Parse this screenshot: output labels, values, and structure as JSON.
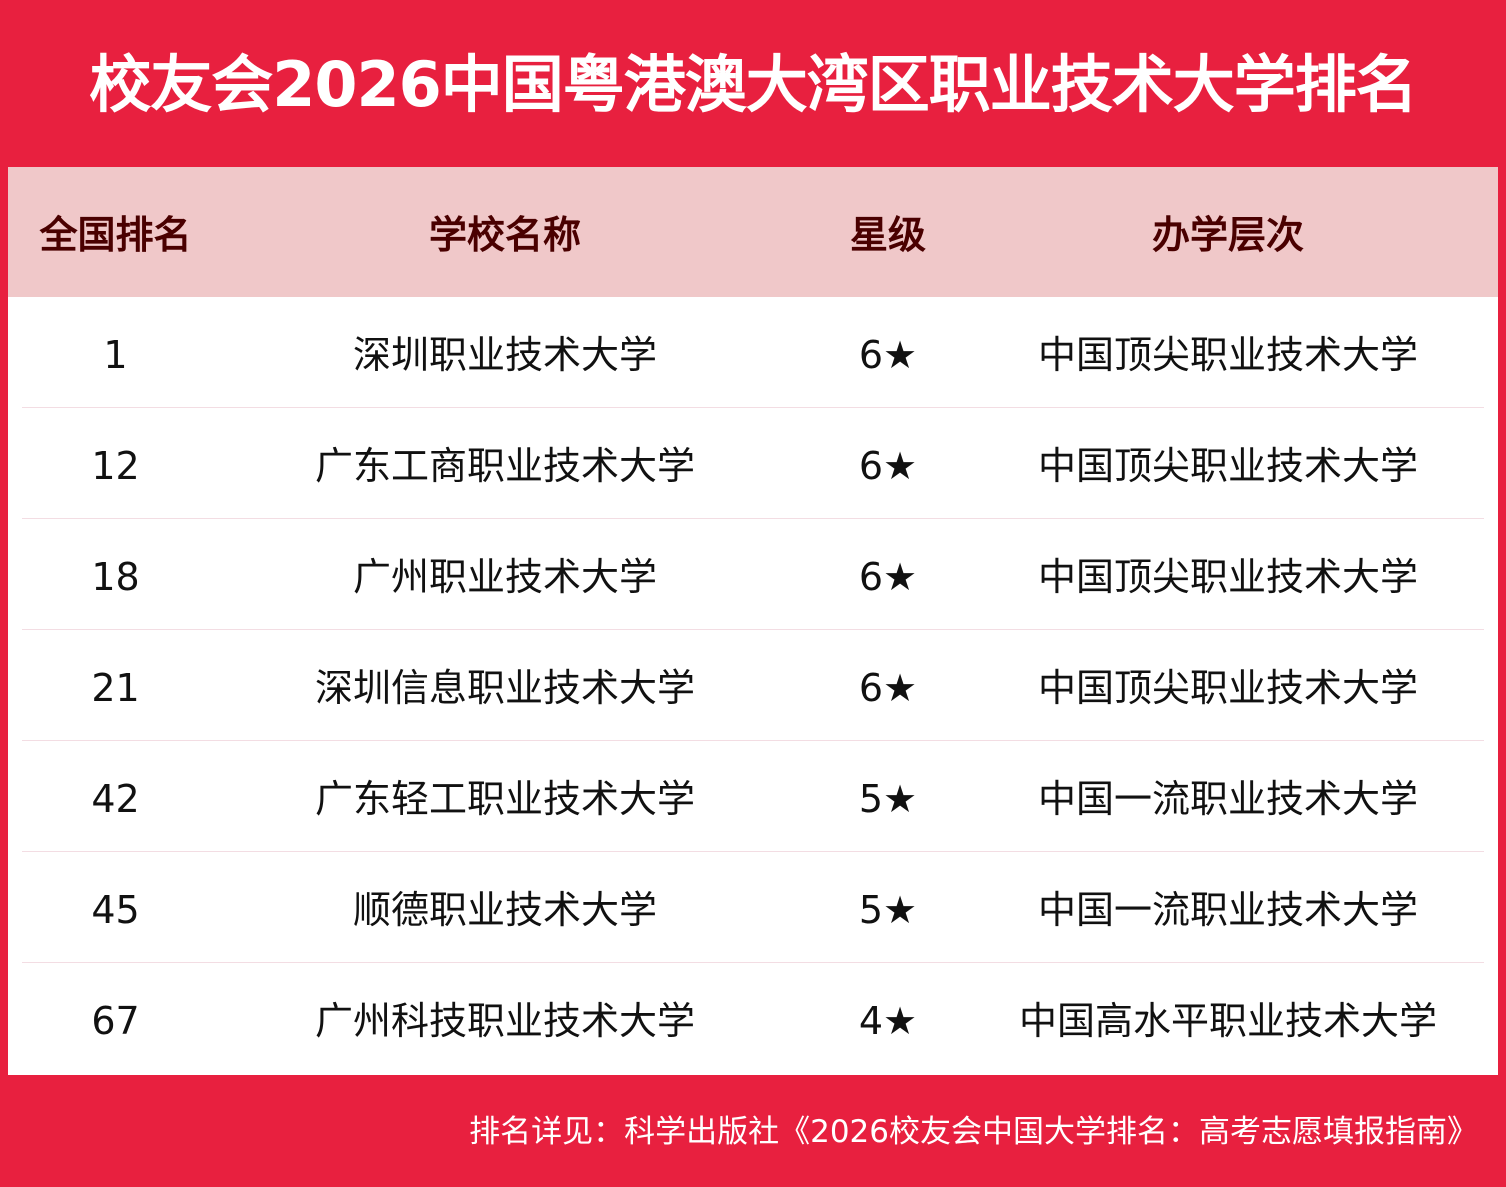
{
  "title": "校友会2026中国粤港澳大湾区职业技术大学排名",
  "columns": [
    "全国排名",
    "学校名称",
    "星级",
    "办学层次"
  ],
  "rows": [
    {
      "rank": "1",
      "name": "深圳职业技术大学",
      "stars": "6★",
      "level": "中国顶尖职业技术大学"
    },
    {
      "rank": "12",
      "name": "广东工商职业技术大学",
      "stars": "6★",
      "level": "中国顶尖职业技术大学"
    },
    {
      "rank": "18",
      "name": "广州职业技术大学",
      "stars": "6★",
      "level": "中国顶尖职业技术大学"
    },
    {
      "rank": "21",
      "name": "深圳信息职业技术大学",
      "stars": "6★",
      "level": "中国顶尖职业技术大学"
    },
    {
      "rank": "42",
      "name": "广东轻工职业技术大学",
      "stars": "5★",
      "level": "中国一流职业技术大学"
    },
    {
      "rank": "45",
      "name": "顺德职业技术大学",
      "stars": "5★",
      "level": "中国一流职业技术大学"
    },
    {
      "rank": "67",
      "name": "广州科技职业技术大学",
      "stars": "4★",
      "level": "中国高水平职业技术大学"
    }
  ],
  "footer": "排名详见：科学出版社《2026校友会中国大学排名：高考志愿填报指南》",
  "colors": {
    "brand_red": "#e8203f",
    "header_bg": "#f0c8c9",
    "header_text": "#4a0000"
  }
}
